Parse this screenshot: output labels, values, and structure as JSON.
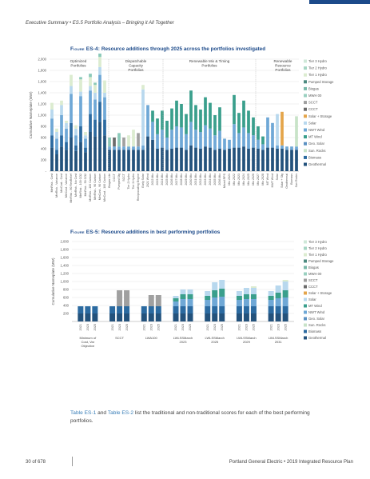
{
  "header": {
    "text": "Executive Summary  •  ES.5 Portfolio Analysis – Bringing it All Together"
  },
  "figure1": {
    "label": "Figure ES-4:",
    "title": " Resource additions through 2025 across the portfolios investigated"
  },
  "figure2": {
    "label": "Figure ES-5:",
    "title": " Resource additions in best performing portfolios"
  },
  "paragraph": {
    "link1": "Table ES-1",
    "mid1": " and ",
    "link2": "Table ES-2",
    "rest": " list the traditional and non-traditional scores for each of the best performing portfolios."
  },
  "footer": {
    "page": "30 of 678",
    "org": "Portland General Electric  •  2019 Integrated Resource Plan"
  },
  "colors": {
    "DR": "#23527c",
    "EE": "#2b6aa0",
    "Solar": "#6fa8d6",
    "Storage": "#b8d8ee",
    "Wind": "#3a9f8c",
    "Other": "#8ac9b9",
    "Hydro": "#dcecd0",
    "Flex": "#6b6b6b",
    "Gas": "#a0a0a0",
    "Gold": "#e4a54b",
    "Pale": "#c8e3c8"
  },
  "chart_data": [
    {
      "type": "bar",
      "stacked": true,
      "ylabel": "Cumulative Nameplate (MW)",
      "ylim": [
        0,
        2000
      ],
      "yticks": [
        0,
        200,
        400,
        600,
        800,
        1000,
        1200,
        1400,
        1600,
        1800,
        2000
      ],
      "yticklabels": [
        "-",
        "200",
        "400",
        "600",
        "800",
        "1,000",
        "1,200",
        "1,400",
        "1,600",
        "1,800",
        "2,000"
      ],
      "grid": true,
      "legend_position": "right",
      "legend": [
        "Tier 3 Hydro",
        "Tier 2 Hydro",
        "Tier 1 Hydro",
        "Pumped Storage",
        "Biogas",
        "MWH 00",
        "SCCT",
        "CCCT",
        "Solar + Storage",
        "Solar",
        "NWT Wind",
        "MT Wind",
        "Geo. Solar",
        "Sun. Rocks",
        "Biomass",
        "Geothermal"
      ],
      "group_labels": [
        "Optimized\nPortfolios",
        "Dispatchable\nCapacity\nPortfolios",
        "Renewable Mix & Timing\nPortfolios",
        "Renewable\nResource\nPortfolios"
      ],
      "categories": [
        "MinRisk - Cost",
        "MinRisk - Variance",
        "MinCost - Cost",
        "MinCost - Variance",
        "MinRisk - 90 ResRelief",
        "MinRisk - No Cost",
        "MinRisk - 100 CO2",
        "MinRisk - 50 CO2",
        "MinRisk - 100 Carbon",
        "MinRisk - 90 Carbon",
        "MinCost - 90 Carbon",
        "MinCost - 100 Carbon",
        "Biogas Lite",
        "CCCT",
        "Pumped Stg",
        "SCCT",
        "Tier 2 Hydro",
        "Tier 3 Hydro",
        "Reciprocating Engine",
        "Early Solar",
        "2021 Wind",
        "2022 Mix",
        "2023 Mix",
        "2024 Mix",
        "2025 Mix",
        "2026 Mix",
        "2027 Mix",
        "2028 Mix",
        "2029 Mix",
        "2030 Mix",
        "2031 Mix",
        "2032 Mix",
        "2033 Mix",
        "2034 Mix",
        "2035 Mix",
        "2036 Mix",
        "Mixed RPS",
        "Mix 2021",
        "Mix 2022",
        "Mix 2023",
        "Mix 2024",
        "Mix 2025",
        "Mix 2026",
        "Mix 2027",
        "Mix 2028",
        "MT Wind",
        "NWT Wind",
        "Solar",
        "Solar + Stg",
        "Geothermal",
        "Biomass",
        "Sun Rocks"
      ],
      "series": [
        {
          "name": "Geothermal",
          "values": [
            420,
            300,
            440,
            380,
            600,
            360,
            520,
            340,
            700,
            620,
            880,
            640,
            380,
            380,
            380,
            380,
            380,
            380,
            380,
            380,
            620,
            560,
            400,
            420,
            380,
            400,
            420,
            420,
            380,
            460,
            420,
            400,
            440,
            420,
            380,
            400,
            380,
            400,
            420,
            420,
            440,
            400,
            420,
            400,
            380,
            420,
            420,
            400,
            400,
            380,
            380,
            380
          ]
        },
        {
          "name": "Biomass",
          "values": [
            220,
            80,
            200,
            140,
            260,
            100,
            280,
            80,
            320,
            300,
            360,
            280,
            0,
            0,
            0,
            0,
            0,
            0,
            0,
            0,
            0,
            0,
            0,
            0,
            0,
            0,
            0,
            0,
            0,
            0,
            0,
            0,
            0,
            0,
            0,
            0,
            0,
            0,
            0,
            0,
            0,
            0,
            0,
            0,
            0,
            0,
            0,
            0,
            0,
            0,
            0,
            0
          ]
        },
        {
          "name": "NWT Wind",
          "values": [
            300,
            200,
            360,
            240,
            520,
            180,
            540,
            160,
            420,
            360,
            480,
            400,
            60,
            60,
            60,
            60,
            60,
            60,
            60,
            80,
            560,
            320,
            260,
            320,
            220,
            340,
            380,
            360,
            280,
            420,
            320,
            300,
            380,
            340,
            260,
            320,
            200,
            160,
            420,
            260,
            340,
            280,
            220,
            160,
            100,
            540,
            440,
            60,
            60,
            60,
            60,
            60
          ]
        },
        {
          "name": "Solar",
          "values": [
            160,
            120,
            180,
            100,
            140,
            120,
            80,
            60,
            80,
            120,
            140,
            80,
            0,
            0,
            0,
            0,
            0,
            0,
            0,
            1000,
            0,
            0,
            0,
            0,
            0,
            0,
            0,
            0,
            0,
            0,
            0,
            0,
            0,
            0,
            0,
            0,
            0,
            0,
            0,
            0,
            0,
            0,
            0,
            0,
            0,
            0,
            0,
            560,
            0,
            0,
            0,
            0
          ]
        },
        {
          "name": "Solar + Storage",
          "values": [
            0,
            0,
            0,
            0,
            0,
            0,
            0,
            0,
            0,
            0,
            0,
            0,
            0,
            0,
            0,
            0,
            0,
            0,
            0,
            0,
            0,
            0,
            0,
            0,
            0,
            0,
            0,
            0,
            0,
            0,
            0,
            0,
            0,
            0,
            0,
            0,
            0,
            0,
            0,
            0,
            0,
            0,
            0,
            0,
            0,
            0,
            0,
            0,
            600,
            0,
            0,
            0
          ]
        },
        {
          "name": "Sun. Rocks",
          "values": [
            0,
            0,
            0,
            0,
            0,
            0,
            0,
            0,
            0,
            0,
            0,
            0,
            0,
            0,
            0,
            0,
            0,
            0,
            0,
            0,
            0,
            0,
            0,
            0,
            0,
            0,
            0,
            0,
            0,
            0,
            0,
            0,
            0,
            0,
            0,
            0,
            0,
            0,
            0,
            0,
            0,
            0,
            0,
            0,
            0,
            0,
            0,
            0,
            0,
            0,
            0,
            540
          ]
        },
        {
          "name": "MT Wind",
          "values": [
            0,
            0,
            0,
            0,
            0,
            0,
            0,
            0,
            0,
            0,
            0,
            0,
            0,
            0,
            0,
            0,
            0,
            0,
            0,
            0,
            0,
            200,
            280,
            340,
            300,
            380,
            460,
            420,
            360,
            560,
            440,
            400,
            500,
            460,
            360,
            420,
            0,
            0,
            520,
            360,
            480,
            400,
            320,
            240,
            140,
            0,
            0,
            0,
            0,
            0,
            0,
            0
          ]
        },
        {
          "name": "CCCT",
          "values": [
            0,
            0,
            0,
            0,
            0,
            0,
            0,
            0,
            0,
            0,
            0,
            0,
            0,
            160,
            0,
            0,
            0,
            0,
            0,
            0,
            0,
            0,
            0,
            0,
            0,
            0,
            0,
            0,
            0,
            0,
            0,
            0,
            0,
            0,
            0,
            0,
            0,
            0,
            0,
            0,
            0,
            0,
            0,
            0,
            0,
            0,
            0,
            0,
            0,
            0,
            0,
            0
          ]
        },
        {
          "name": "SCCT",
          "values": [
            0,
            0,
            0,
            0,
            0,
            0,
            0,
            0,
            0,
            0,
            0,
            0,
            0,
            0,
            0,
            160,
            0,
            0,
            240,
            0,
            0,
            0,
            0,
            0,
            0,
            0,
            0,
            0,
            0,
            0,
            0,
            0,
            0,
            0,
            0,
            0,
            0,
            0,
            0,
            0,
            0,
            0,
            0,
            0,
            0,
            0,
            0,
            0,
            0,
            0,
            0,
            0
          ]
        },
        {
          "name": "Pumped Storage",
          "values": [
            0,
            0,
            0,
            0,
            0,
            0,
            0,
            0,
            0,
            0,
            0,
            0,
            0,
            0,
            240,
            0,
            0,
            0,
            0,
            0,
            0,
            0,
            0,
            0,
            0,
            0,
            0,
            0,
            0,
            0,
            0,
            0,
            0,
            0,
            0,
            0,
            0,
            0,
            0,
            0,
            0,
            0,
            0,
            0,
            0,
            0,
            0,
            0,
            0,
            0,
            0,
            0
          ]
        },
        {
          "name": "Tier 1 Hydro",
          "values": [
            120,
            60,
            80,
            40,
            200,
            60,
            220,
            60,
            160,
            140,
            180,
            220,
            0,
            0,
            0,
            0,
            200,
            300,
            0,
            80,
            0,
            0,
            0,
            0,
            0,
            0,
            0,
            0,
            0,
            0,
            0,
            0,
            0,
            0,
            0,
            0,
            0,
            0,
            0,
            0,
            0,
            0,
            0,
            0,
            0,
            0,
            0,
            0,
            0,
            0,
            0,
            0
          ]
        },
        {
          "name": "Biogas",
          "values": [
            0,
            0,
            0,
            0,
            0,
            0,
            40,
            0,
            60,
            40,
            60,
            0,
            160,
            0,
            0,
            0,
            0,
            0,
            0,
            0,
            0,
            0,
            0,
            0,
            0,
            0,
            0,
            0,
            0,
            0,
            0,
            0,
            0,
            0,
            0,
            0,
            0,
            0,
            0,
            0,
            0,
            0,
            0,
            0,
            0,
            0,
            0,
            0,
            0,
            0,
            0,
            0
          ]
        }
      ]
    },
    {
      "type": "bar",
      "stacked": true,
      "ylabel": "Cumulative Nameplate (MW)",
      "ylim": [
        0,
        2000
      ],
      "yticks": [
        200,
        400,
        600,
        800,
        1000,
        1200,
        1400,
        1600,
        1800,
        2000
      ],
      "yticklabels": [
        "200",
        "400",
        "600",
        "800",
        "1,000",
        "1,200",
        "1,400",
        "1,600",
        "1,800",
        "2,000"
      ],
      "grid": true,
      "legend_position": "right",
      "legend": [
        "Tier 3 Hydro",
        "Tier 2 Hydro",
        "Tier 1 Hydro",
        "Pumped Storage",
        "Biogas",
        "MWH 00",
        "SCCT",
        "CCCT",
        "Solar + Storage",
        "Solar",
        "MT Wind",
        "NWT Wind",
        "Geo. Solar",
        "Sun. Rocks",
        "Biomass",
        "Geothermal"
      ],
      "group_labels": [
        "Minimum of\nCost, Var\nObjective",
        "SCCT",
        "LWA100",
        "LWLSSMarch\n2023",
        "LWLSSMarch\n2025",
        "LWLSSMarch\n2029",
        "LWLSSMarch\n2031"
      ],
      "categories": [
        "2021",
        "2023",
        "2025"
      ],
      "series": [
        {
          "name": "Geothermal",
          "values": [
            [
              200,
              200,
              200
            ],
            [
              200,
              200,
              200
            ],
            [
              200,
              200,
              200
            ],
            [
              200,
              200,
              200
            ],
            [
              200,
              200,
              200
            ],
            [
              200,
              200,
              200
            ],
            [
              200,
              200,
              200
            ]
          ]
        },
        {
          "name": "Biomass",
          "values": [
            [
              180,
              180,
              180
            ],
            [
              180,
              180,
              180
            ],
            [
              180,
              180,
              180
            ],
            [
              180,
              180,
              180
            ],
            [
              180,
              180,
              180
            ],
            [
              180,
              180,
              180
            ],
            [
              180,
              180,
              180
            ]
          ]
        },
        {
          "name": "NWT Wind",
          "values": [
            [
              0,
              0,
              0
            ],
            [
              0,
              0,
              0
            ],
            [
              0,
              0,
              0
            ],
            [
              120,
              180,
              180
            ],
            [
              160,
              220,
              240
            ],
            [
              160,
              180,
              180
            ],
            [
              160,
              200,
              220
            ]
          ]
        },
        {
          "name": "MT Wind",
          "values": [
            [
              0,
              0,
              0
            ],
            [
              0,
              0,
              0
            ],
            [
              0,
              0,
              0
            ],
            [
              80,
              120,
              120
            ],
            [
              100,
              180,
              200
            ],
            [
              100,
              120,
              120
            ],
            [
              100,
              140,
              180
            ]
          ]
        },
        {
          "name": "Solar",
          "values": [
            [
              0,
              0,
              0
            ],
            [
              0,
              0,
              0
            ],
            [
              0,
              0,
              0
            ],
            [
              60,
              120,
              120
            ],
            [
              120,
              200,
              220
            ],
            [
              120,
              160,
              160
            ],
            [
              120,
              180,
              220
            ]
          ]
        },
        {
          "name": "SCCT",
          "values": [
            [
              0,
              0,
              0
            ],
            [
              0,
              400,
              400
            ],
            [
              0,
              280,
              280
            ],
            [
              0,
              0,
              0
            ],
            [
              0,
              0,
              0
            ],
            [
              0,
              0,
              0
            ],
            [
              0,
              0,
              0
            ]
          ]
        },
        {
          "name": "Tier 1 Hydro",
          "values": [
            [
              0,
              0,
              0
            ],
            [
              0,
              0,
              0
            ],
            [
              0,
              0,
              0
            ],
            [
              0,
              0,
              0
            ],
            [
              0,
              0,
              0
            ],
            [
              0,
              0,
              40
            ],
            [
              0,
              0,
              40
            ]
          ]
        }
      ]
    }
  ]
}
